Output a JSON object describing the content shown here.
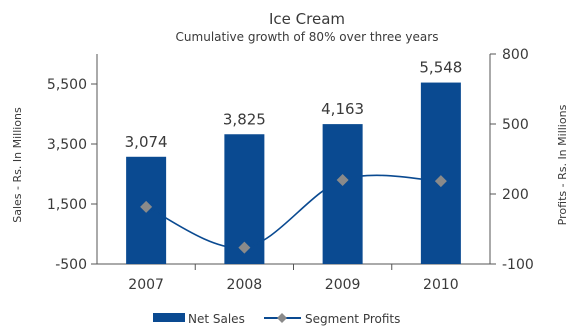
{
  "chart_data": {
    "type": "bar",
    "title": "Ice Cream",
    "subtitle": "Cumulative growth of 80% over three years",
    "categories": [
      "2007",
      "2008",
      "2009",
      "2010"
    ],
    "series": [
      {
        "name": "Net Sales",
        "type": "bar",
        "axis": "left",
        "values": [
          3074,
          3825,
          4163,
          5548
        ],
        "labels": [
          "3,074",
          "3,825",
          "4,163",
          "5,548"
        ]
      },
      {
        "name": "Segment Profits",
        "type": "line",
        "axis": "right",
        "values": [
          145,
          -30,
          260,
          255
        ]
      }
    ],
    "ylabel": "Sales - Rs. In Millions",
    "y2label": "Profits - Rs. In Millions",
    "ylim": [
      -500,
      6500
    ],
    "y2lim": [
      -100,
      800
    ],
    "yticks": [
      -500,
      1500,
      3500,
      5500
    ],
    "ytick_labels": [
      "-500",
      "1,500",
      "3,500",
      "5,500"
    ],
    "y2ticks": [
      -100,
      200,
      500,
      800
    ],
    "y2tick_labels": [
      "-100",
      "200",
      "500",
      "800"
    ],
    "grid": false,
    "legend": "bottom",
    "colors": {
      "bar": "#0a4a91",
      "line": "#0a4a91",
      "marker": "#8a8a8a",
      "axis": "#555555"
    }
  }
}
